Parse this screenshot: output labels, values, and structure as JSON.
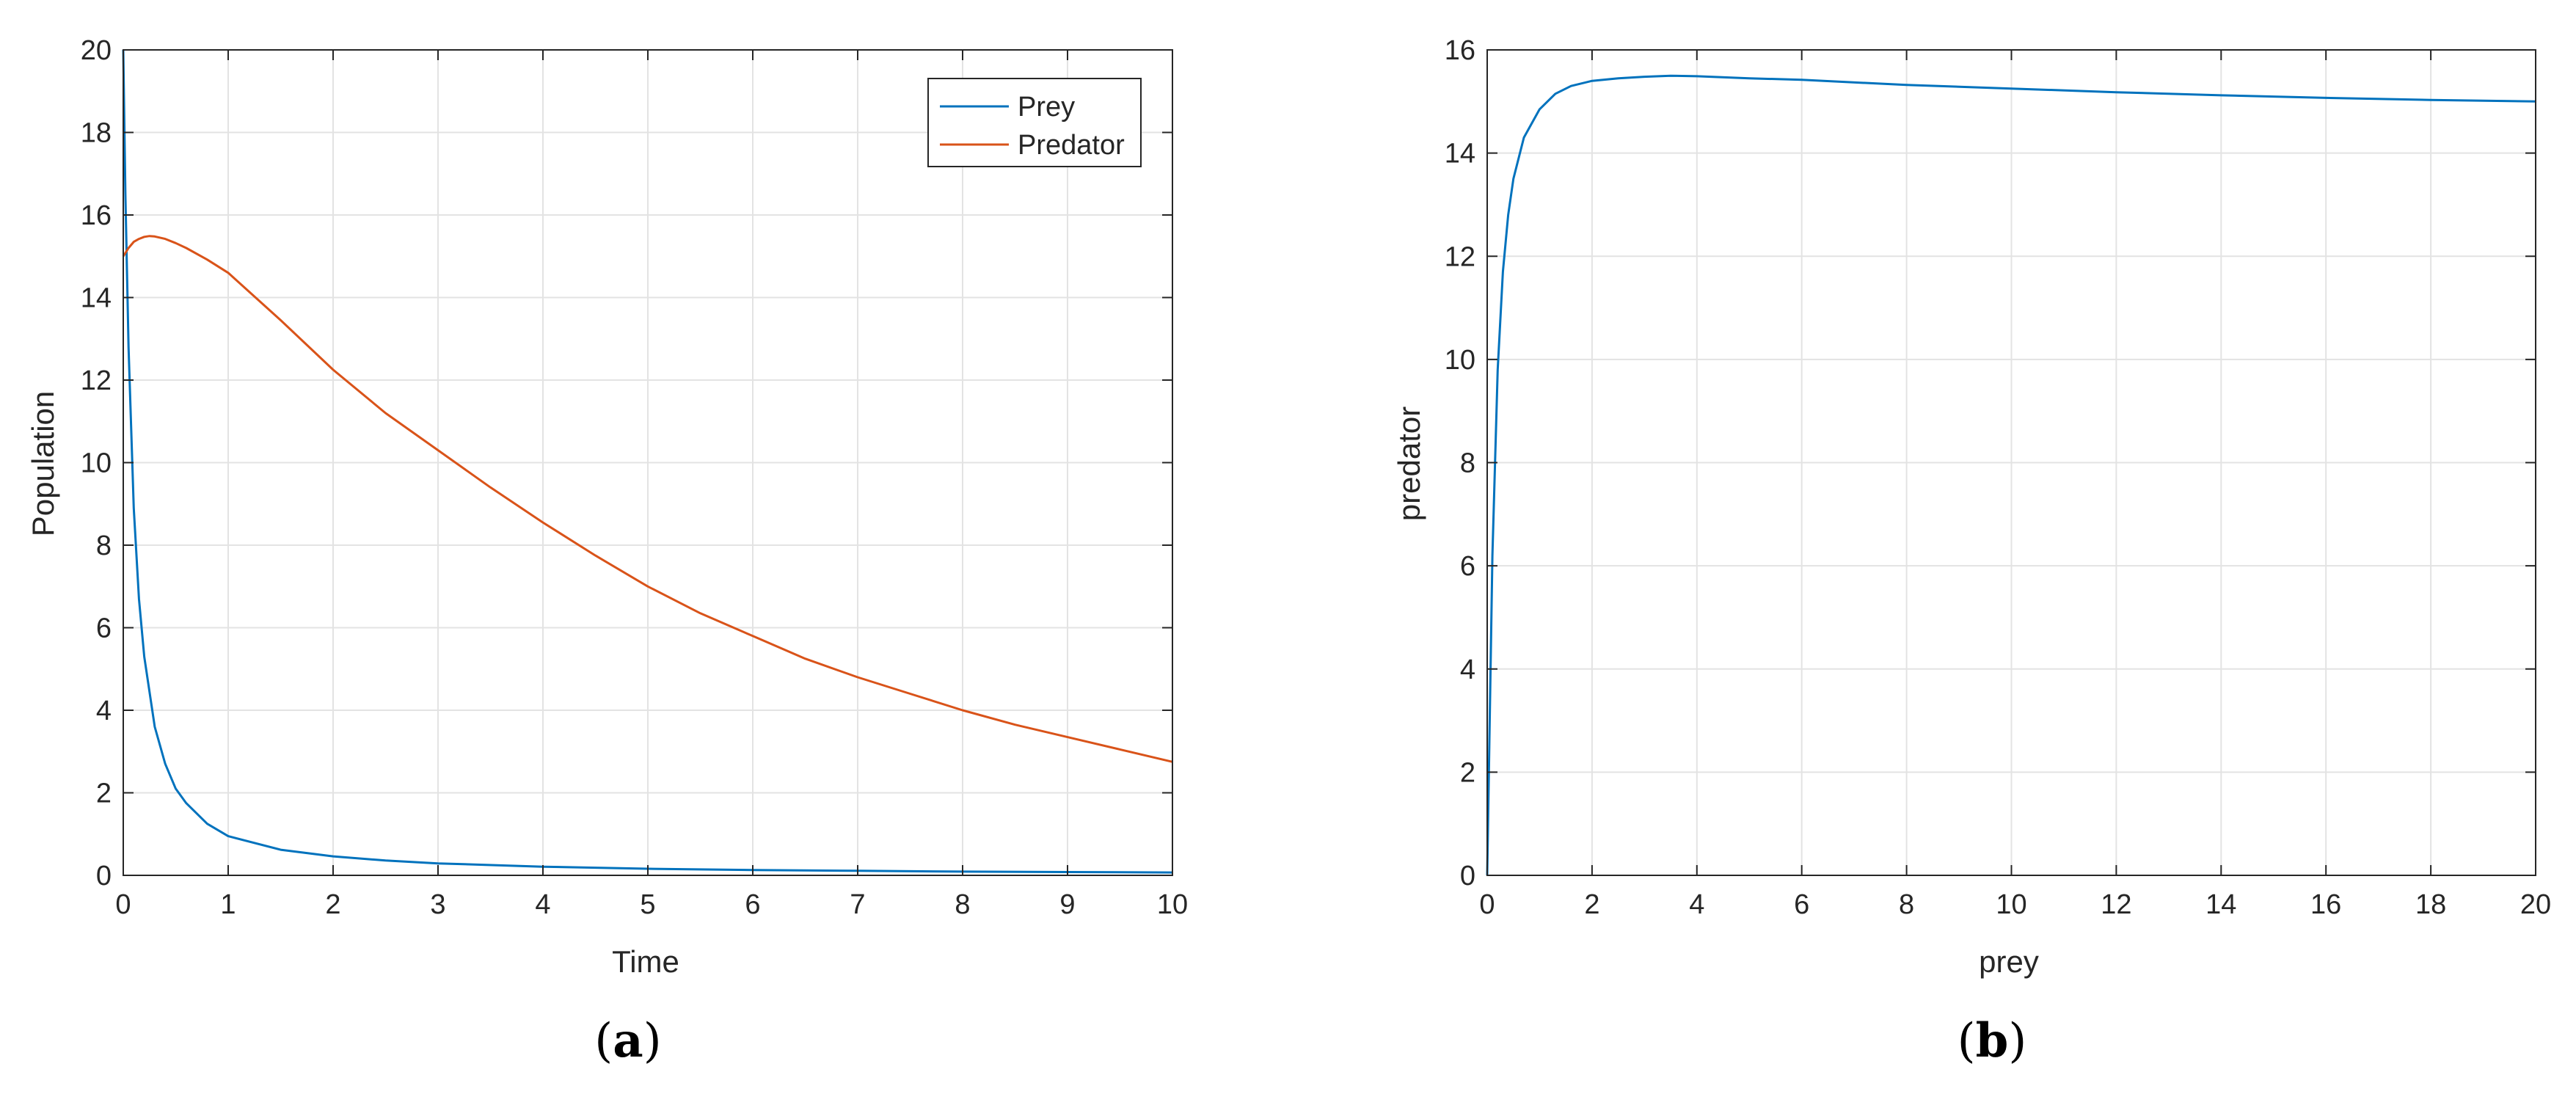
{
  "captions": {
    "a": "(a)",
    "b": "(b)"
  },
  "colors": {
    "prey": "#0072BD",
    "predator": "#D95319",
    "grid": "#e3e3e3",
    "axis": "#262626"
  },
  "chart_data": [
    {
      "type": "line",
      "panel": "a",
      "xlabel": "Time",
      "ylabel": "Population",
      "xlim": [
        0,
        10
      ],
      "ylim": [
        0,
        20
      ],
      "xticks": [
        "0",
        "1",
        "2",
        "3",
        "4",
        "5",
        "6",
        "7",
        "8",
        "9",
        "10"
      ],
      "yticks": [
        "0",
        "2",
        "4",
        "6",
        "8",
        "10",
        "12",
        "14",
        "16",
        "18",
        "20"
      ],
      "grid": true,
      "legend": "top-right",
      "series": [
        {
          "name": "Prey",
          "color": "#0072BD",
          "x": [
            0,
            0.02,
            0.05,
            0.1,
            0.15,
            0.2,
            0.3,
            0.4,
            0.5,
            0.6,
            0.8,
            1,
            1.5,
            2,
            2.5,
            3,
            4,
            5,
            6,
            7,
            8,
            9,
            10
          ],
          "y": [
            20,
            16.5,
            12.8,
            8.9,
            6.7,
            5.3,
            3.6,
            2.7,
            2.1,
            1.75,
            1.25,
            0.95,
            0.62,
            0.46,
            0.36,
            0.29,
            0.21,
            0.16,
            0.13,
            0.11,
            0.09,
            0.08,
            0.07
          ]
        },
        {
          "name": "Predator",
          "color": "#D95319",
          "x": [
            0,
            0.05,
            0.1,
            0.15,
            0.2,
            0.25,
            0.3,
            0.4,
            0.5,
            0.6,
            0.8,
            1,
            1.5,
            2,
            2.5,
            3,
            3.5,
            4,
            4.5,
            5,
            5.5,
            6,
            6.5,
            7,
            7.5,
            8,
            8.5,
            9,
            9.5,
            10
          ],
          "y": [
            15,
            15.2,
            15.35,
            15.42,
            15.47,
            15.49,
            15.48,
            15.42,
            15.32,
            15.2,
            14.92,
            14.6,
            13.45,
            12.25,
            11.2,
            10.3,
            9.4,
            8.55,
            7.75,
            7.0,
            6.35,
            5.8,
            5.25,
            4.8,
            4.4,
            4.0,
            3.65,
            3.35,
            3.05,
            2.75
          ]
        }
      ]
    },
    {
      "type": "line",
      "panel": "b",
      "xlabel": "prey",
      "ylabel": "predator",
      "xlim": [
        0,
        20
      ],
      "ylim": [
        0,
        16
      ],
      "xticks": [
        "0",
        "2",
        "4",
        "6",
        "8",
        "10",
        "12",
        "14",
        "16",
        "18",
        "20"
      ],
      "yticks": [
        "0",
        "2",
        "4",
        "6",
        "8",
        "10",
        "12",
        "14",
        "16"
      ],
      "grid": true,
      "series": [
        {
          "color": "#0072BD",
          "x": [
            0,
            0.1,
            0.2,
            0.3,
            0.4,
            0.5,
            0.7,
            1.0,
            1.3,
            1.6,
            2.0,
            2.5,
            3.0,
            3.5,
            4.0,
            5.0,
            6.0,
            8.0,
            10.0,
            12.0,
            14.0,
            16.0,
            18.0,
            20.0
          ],
          "y": [
            0,
            6.2,
            9.8,
            11.7,
            12.8,
            13.5,
            14.3,
            14.85,
            15.15,
            15.3,
            15.4,
            15.45,
            15.48,
            15.5,
            15.49,
            15.45,
            15.42,
            15.32,
            15.25,
            15.18,
            15.12,
            15.07,
            15.03,
            15.0
          ]
        }
      ]
    }
  ]
}
